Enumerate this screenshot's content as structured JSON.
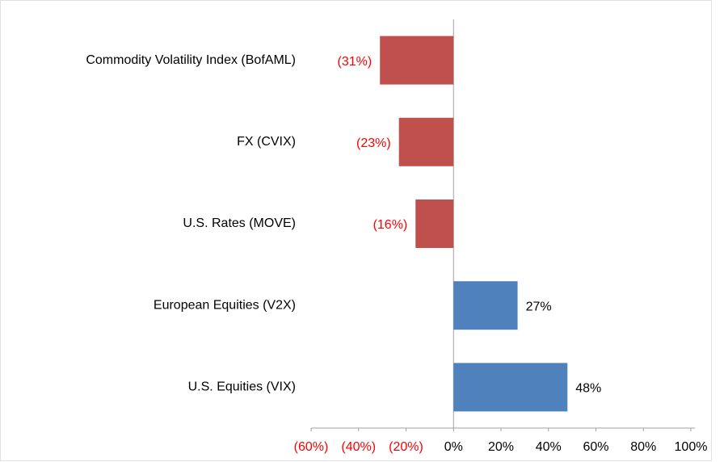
{
  "chart_data": {
    "type": "barh",
    "categories": [
      "Commodity Volatility Index (BofAML)",
      "FX (CVIX)",
      "U.S. Rates (MOVE)",
      "European Equities (V2X)",
      "U.S. Equities (VIX)"
    ],
    "values": [
      -31,
      -23,
      -16,
      27,
      48
    ],
    "value_labels": [
      "(31%)",
      "(23%)",
      "(16%)",
      "27%",
      "48%"
    ],
    "colors": {
      "positive": "#4f81bd",
      "negative": "#c0504d",
      "negative_label": "#ff0000",
      "positive_label": "#000000"
    },
    "xlim": [
      -60,
      100
    ],
    "xticks": [
      {
        "value": -60,
        "label": "(60%)"
      },
      {
        "value": -40,
        "label": "(40%)"
      },
      {
        "value": -20,
        "label": "(20%)"
      },
      {
        "value": 0,
        "label": "0%"
      },
      {
        "value": 20,
        "label": "20%"
      },
      {
        "value": 40,
        "label": "40%"
      },
      {
        "value": 60,
        "label": "60%"
      },
      {
        "value": 80,
        "label": "80%"
      },
      {
        "value": 100,
        "label": "100%"
      }
    ],
    "grid": false
  }
}
